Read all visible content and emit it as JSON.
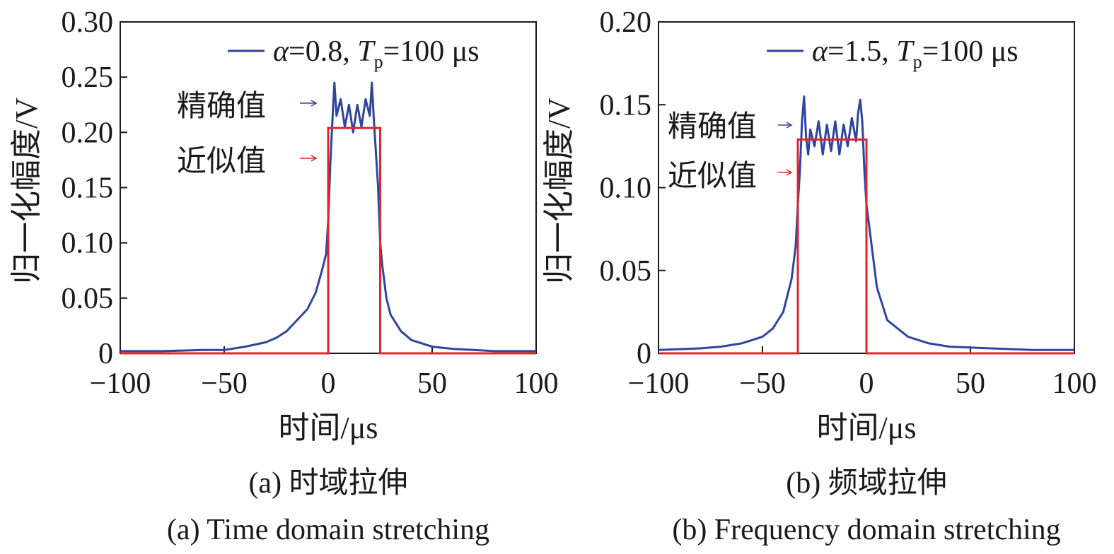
{
  "colors": {
    "exact": "#2e45a0",
    "approx": "#e0262c",
    "axis": "#1a1a1a"
  },
  "chart_data": [
    {
      "type": "line",
      "xlabel": "时间/μs",
      "ylabel": "归一化幅度/V",
      "xlim": [
        -100,
        100
      ],
      "ylim": [
        0,
        0.3
      ],
      "xticks": [
        -100,
        -50,
        0,
        50,
        100
      ],
      "xtick_labels": [
        "−100",
        "−50",
        "0",
        "50",
        "100"
      ],
      "yticks": [
        0,
        0.05,
        0.1,
        0.15,
        0.2,
        0.25,
        0.3
      ],
      "ytick_labels": [
        "0",
        "0.05",
        "0.10",
        "0.15",
        "0.20",
        "0.25",
        "0.30"
      ],
      "grid": false,
      "legend_position": "top-right",
      "legend": {
        "alpha": "α",
        "alpha_val": "=0.8, ",
        "tp": "T",
        "tp_sub": "p",
        "tp_val": "=100 μs"
      },
      "annotations": {
        "exact": "精确值",
        "approx": "近似值"
      },
      "caption_cn": "(a) 时域拉伸",
      "caption_en": "(a) Time domain stretching",
      "series": [
        {
          "role": "exact",
          "x": [
            -100,
            -80,
            -60,
            -50,
            -40,
            -30,
            -25,
            -20,
            -15,
            -10,
            -6,
            -3,
            -1,
            0,
            1,
            2,
            3,
            4,
            6,
            8,
            10,
            12,
            14,
            16,
            18,
            20,
            21,
            22,
            24,
            25,
            26,
            28,
            30,
            35,
            40,
            50,
            60,
            70,
            80,
            100
          ],
          "y": [
            0.002,
            0.002,
            0.003,
            0.003,
            0.006,
            0.01,
            0.014,
            0.02,
            0.03,
            0.04,
            0.055,
            0.075,
            0.09,
            0.12,
            0.17,
            0.21,
            0.245,
            0.215,
            0.23,
            0.205,
            0.225,
            0.2,
            0.225,
            0.205,
            0.23,
            0.215,
            0.245,
            0.21,
            0.15,
            0.1,
            0.08,
            0.05,
            0.035,
            0.02,
            0.012,
            0.006,
            0.004,
            0.003,
            0.002,
            0.002
          ]
        },
        {
          "role": "approx",
          "x": [
            -100,
            0,
            0,
            25,
            25,
            100
          ],
          "y": [
            0,
            0,
            0.204,
            0.204,
            0,
            0
          ]
        }
      ]
    },
    {
      "type": "line",
      "xlabel": "时间/μs",
      "ylabel": "归一化幅度/V",
      "xlim": [
        -100,
        100
      ],
      "ylim": [
        0,
        0.2
      ],
      "xticks": [
        -100,
        -50,
        0,
        50,
        100
      ],
      "xtick_labels": [
        "−100",
        "−50",
        "0",
        "50",
        "100"
      ],
      "yticks": [
        0,
        0.05,
        0.1,
        0.15,
        0.2
      ],
      "ytick_labels": [
        "0",
        "0.05",
        "0.10",
        "0.15",
        "0.20"
      ],
      "grid": false,
      "legend_position": "top-right",
      "legend": {
        "alpha": "α",
        "alpha_val": "=1.5, ",
        "tp": "T",
        "tp_sub": "p",
        "tp_val": "=100 μs"
      },
      "annotations": {
        "exact": "精确值",
        "approx": "近似值"
      },
      "caption_cn": "(b) 频域拉伸",
      "caption_en": "(b) Frequency domain stretching",
      "series": [
        {
          "role": "exact",
          "x": [
            -100,
            -80,
            -70,
            -60,
            -50,
            -45,
            -40,
            -36,
            -34,
            -33,
            -32,
            -31,
            -30,
            -29,
            -28,
            -27,
            -25,
            -23,
            -21,
            -19,
            -17,
            -15,
            -13,
            -11,
            -9,
            -7,
            -5,
            -4,
            -3,
            -2,
            -1,
            0,
            2,
            5,
            10,
            20,
            30,
            40,
            60,
            80,
            100
          ],
          "y": [
            0.002,
            0.003,
            0.004,
            0.006,
            0.01,
            0.015,
            0.025,
            0.045,
            0.065,
            0.09,
            0.11,
            0.14,
            0.155,
            0.13,
            0.12,
            0.135,
            0.125,
            0.14,
            0.12,
            0.138,
            0.122,
            0.14,
            0.12,
            0.138,
            0.125,
            0.142,
            0.128,
            0.145,
            0.153,
            0.14,
            0.11,
            0.09,
            0.07,
            0.04,
            0.02,
            0.01,
            0.006,
            0.004,
            0.003,
            0.002,
            0.002
          ]
        },
        {
          "role": "approx",
          "x": [
            -100,
            -33,
            -33,
            0,
            0,
            100
          ],
          "y": [
            0,
            0,
            0.129,
            0.129,
            0,
            0
          ]
        }
      ]
    }
  ]
}
